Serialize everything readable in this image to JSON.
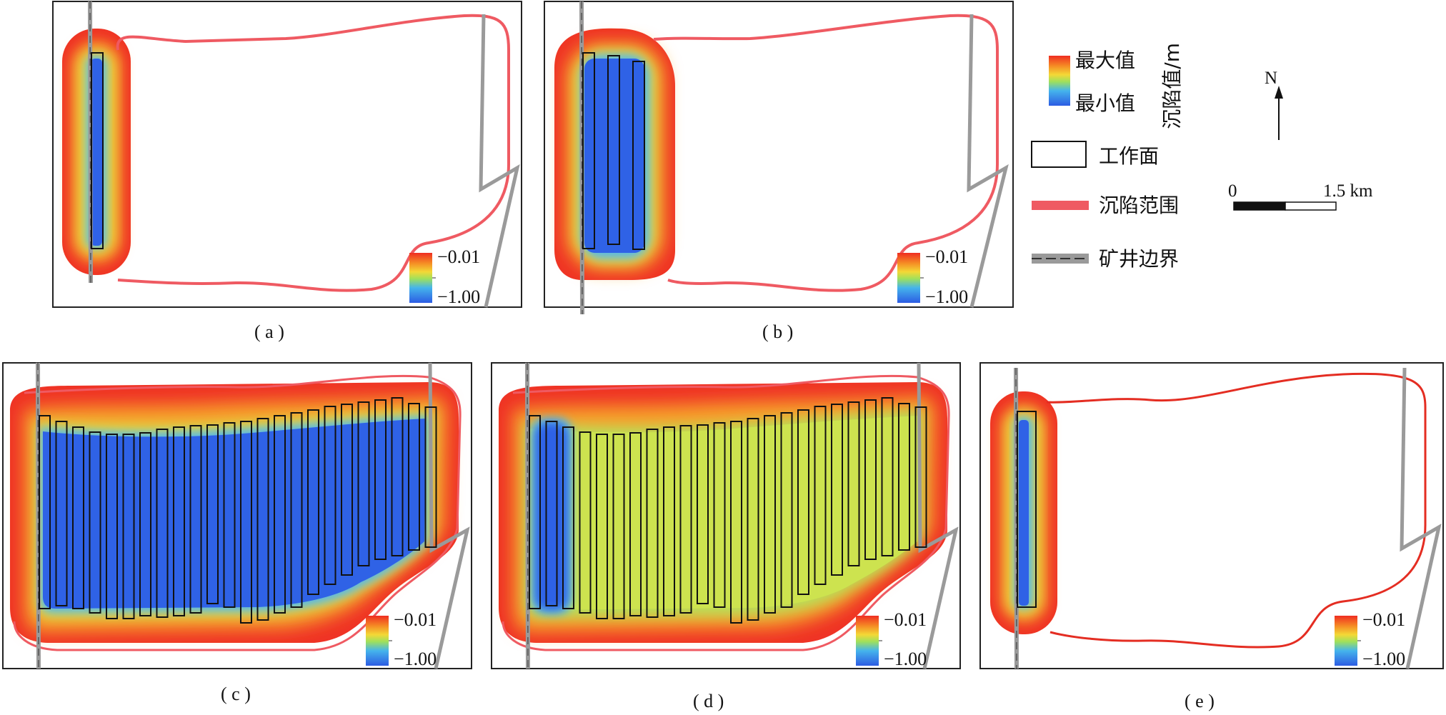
{
  "figure": {
    "panels": [
      {
        "label": "( a )",
        "cbar_max": "−0.01",
        "cbar_min": "−1.00",
        "workfaces": 1,
        "interval": "b"
      },
      {
        "label": "( b )",
        "cbar_max": "−0.01",
        "cbar_min": "−1.00",
        "workfaces": 3,
        "interval": "b"
      },
      {
        "label": "( c )",
        "cbar_max": "−0.01",
        "cbar_min": "−1.00",
        "workfaces": 24,
        "interval": "b"
      },
      {
        "label": "( d )",
        "cbar_max": "−0.01",
        "cbar_min": "−1.00",
        "workfaces": 24,
        "interval": "r"
      },
      {
        "label": "( e )",
        "cbar_max": "−0.01",
        "cbar_min": "−1.00",
        "workfaces": 1,
        "interval": "s"
      }
    ],
    "legend": {
      "colorbar_max": "最大值",
      "colorbar_min": "最小值",
      "colorbar_title": "沉陷值/m",
      "workface": "工作面",
      "subsidence_extent": "沉陷范围",
      "mine_boundary": "矿井边界"
    },
    "north": "N",
    "scale": {
      "start": "0",
      "end": "1.5 km"
    },
    "colors": {
      "subsidence_outline": "#ef5a62",
      "mine_boundary": "#9a9a9a",
      "workface_edge": "#111111",
      "ramp": [
        "#2f62e6",
        "#53a7e8",
        "#b8e05a",
        "#f2dd3a",
        "#f6a12a",
        "#ef3a2a"
      ]
    }
  }
}
